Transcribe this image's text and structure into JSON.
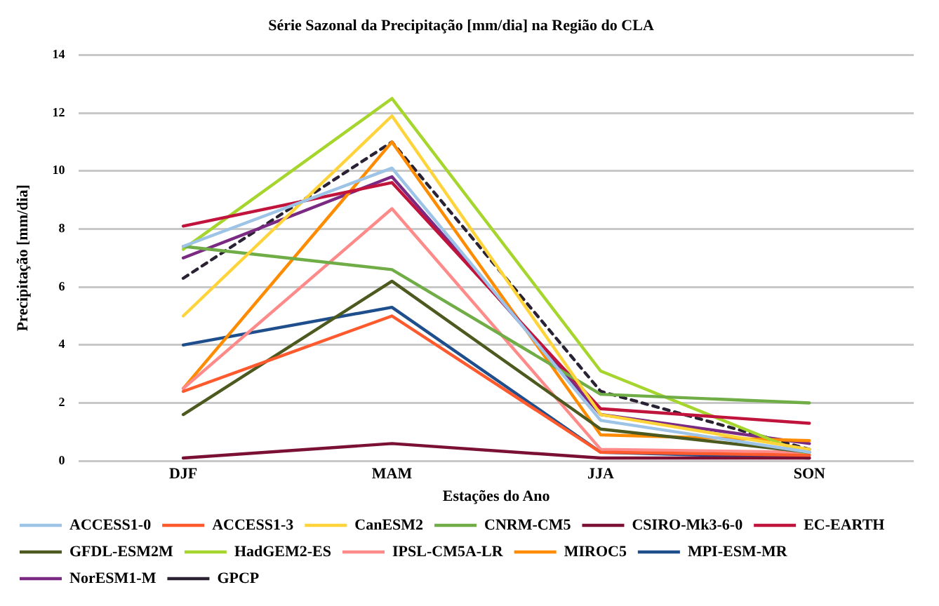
{
  "chart_data": {
    "type": "line",
    "title": "Série Sazonal da Precipitação [mm/dia] na Região do CLA",
    "xlabel": "Estações do Ano",
    "ylabel": "Precipitação [mm/dia]",
    "categories": [
      "DJF",
      "MAM",
      "JJA",
      "SON"
    ],
    "ylim": [
      0,
      14
    ],
    "yticks": [
      0,
      2,
      4,
      6,
      8,
      10,
      12,
      14
    ],
    "grid": "y",
    "legend": "bottom",
    "marker": "none",
    "series": [
      {
        "name": "ACCESS1-0",
        "color": "#9dc3e6",
        "values": [
          7.4,
          10.1,
          1.4,
          0.3
        ]
      },
      {
        "name": "ACCESS1-3",
        "color": "#ff5a2d",
        "values": [
          2.4,
          5.0,
          0.3,
          0.2
        ]
      },
      {
        "name": "CanESM2",
        "color": "#ffd43b",
        "values": [
          5.0,
          11.9,
          1.6,
          0.4
        ]
      },
      {
        "name": "CNRM-CM5",
        "color": "#70ad47",
        "values": [
          7.4,
          6.6,
          2.3,
          2.0
        ]
      },
      {
        "name": "CSIRO-Mk3-6-0",
        "color": "#7b1035",
        "values": [
          0.1,
          0.6,
          0.1,
          0.1
        ]
      },
      {
        "name": "EC-EARTH",
        "color": "#c0143c",
        "values": [
          8.1,
          9.6,
          1.8,
          1.3
        ]
      },
      {
        "name": "GFDL-ESM2M",
        "color": "#4d5a1f",
        "values": [
          1.6,
          6.2,
          1.1,
          0.3
        ]
      },
      {
        "name": "HadGEM2-ES",
        "color": "#a6d62e",
        "values": [
          7.3,
          12.5,
          3.1,
          0.2
        ]
      },
      {
        "name": "IPSL-CM5A-LR",
        "color": "#ff8a8a",
        "values": [
          2.5,
          8.7,
          0.4,
          0.3
        ]
      },
      {
        "name": "MIROC5",
        "color": "#ff8c00",
        "values": [
          2.5,
          11.0,
          0.9,
          0.7
        ]
      },
      {
        "name": "MPI-ESM-MR",
        "color": "#1f4e8c",
        "values": [
          4.0,
          5.3,
          0.3,
          0.1
        ]
      },
      {
        "name": "NorESM1-M",
        "color": "#7a2a82",
        "values": [
          7.0,
          9.8,
          1.6,
          0.6
        ]
      },
      {
        "name": "GPCP",
        "color": "#2a2233",
        "line_style": "dashed",
        "values": [
          6.3,
          11.0,
          2.4,
          0.4
        ]
      }
    ]
  }
}
